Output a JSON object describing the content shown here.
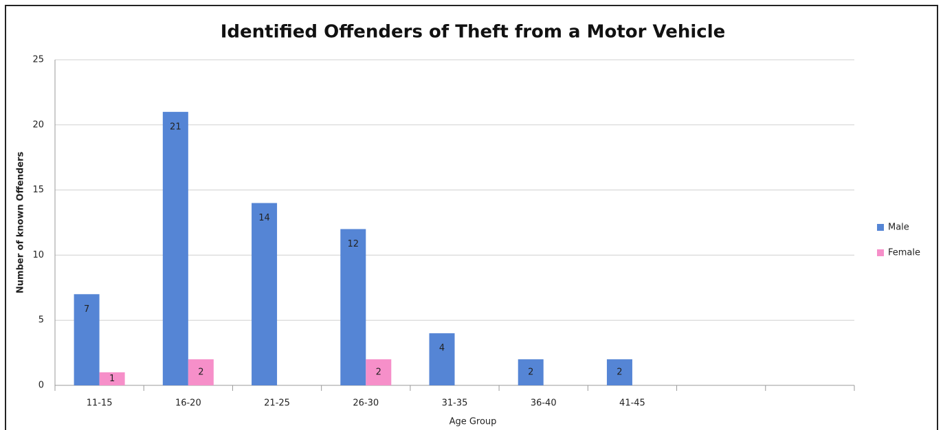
{
  "chart_data": {
    "type": "bar",
    "title": "Identified Offenders of Theft from a Motor Vehicle",
    "x_label": "Age Group",
    "y_label": "Number of known Offenders",
    "categories": [
      "11-15",
      "16-20",
      "21-25",
      "26-30",
      "31-35",
      "36-40",
      "41-45",
      null,
      null
    ],
    "series": [
      {
        "name": "Male",
        "color": "#5585d5",
        "values": [
          7,
          21,
          14,
          12,
          4,
          2,
          2,
          null,
          null
        ]
      },
      {
        "name": "Female",
        "color": "#f68fc9",
        "values": [
          1,
          2,
          null,
          2,
          null,
          null,
          null,
          null,
          null
        ]
      }
    ],
    "ylim": [
      0,
      25
    ],
    "yticks": [
      0,
      5,
      10,
      15,
      20,
      25
    ],
    "grid": true,
    "legend": "right"
  }
}
